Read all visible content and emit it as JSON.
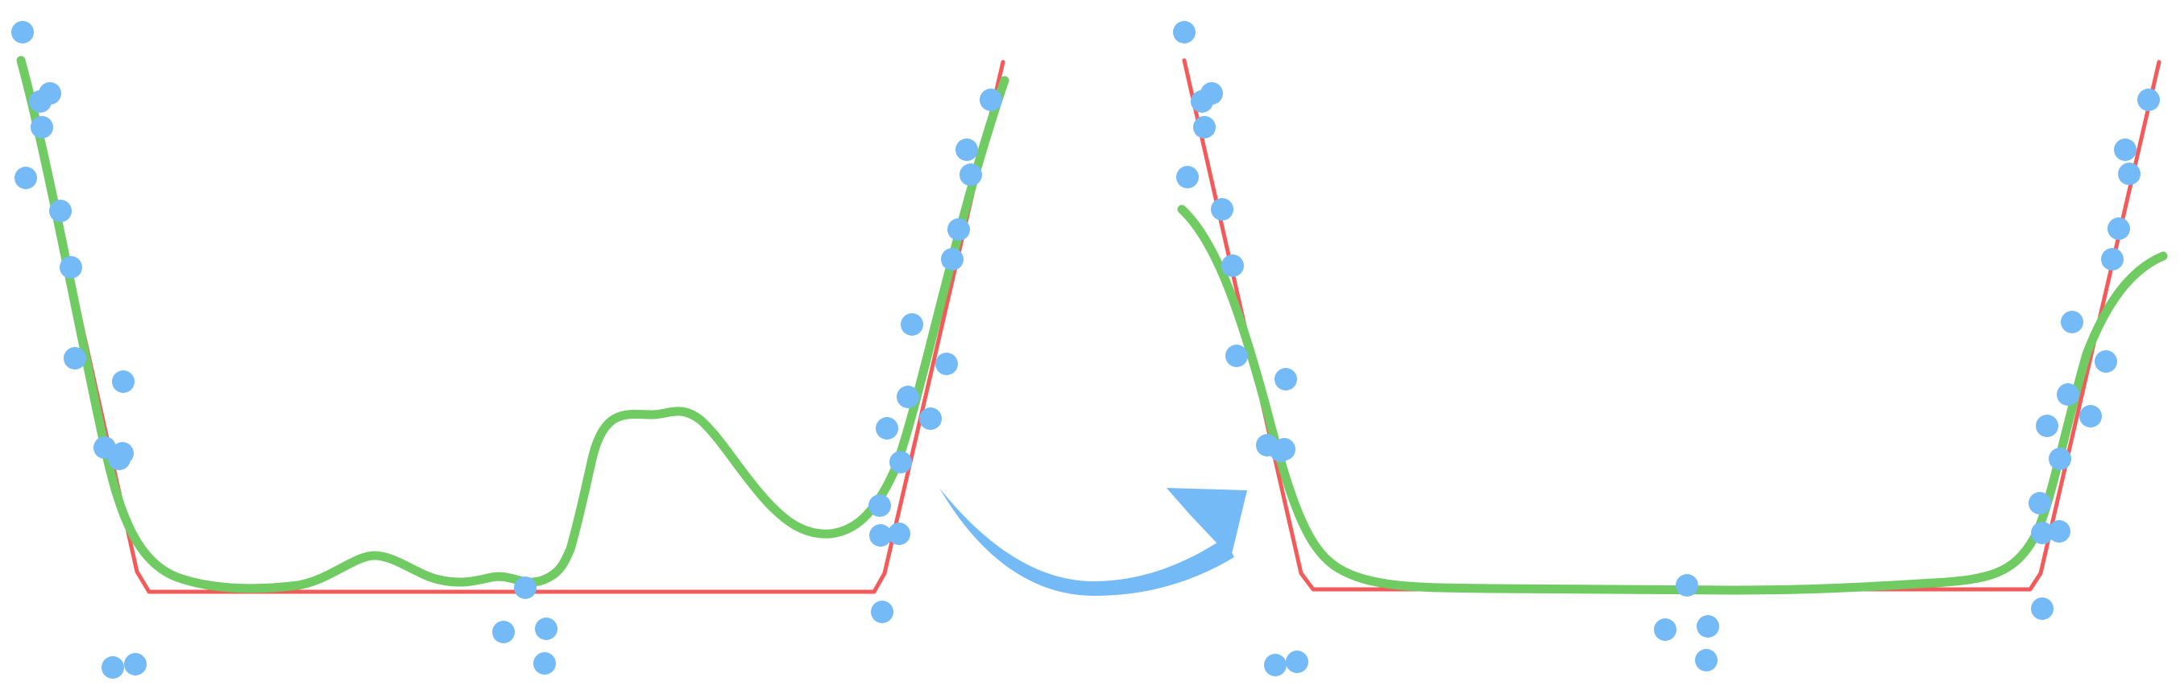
{
  "colors": {
    "ground_truth_curve": "#f35b5b",
    "fitted_curve": "#6fcb62",
    "data_points": "#74baf7",
    "arrow": "#74baf7",
    "background": "#ffffff"
  },
  "panels": [
    {
      "id": "before",
      "fit_behaviour": "overfit-wiggly",
      "point_count": 32
    },
    {
      "id": "after",
      "fit_behaviour": "smooth",
      "point_count": 32
    }
  ],
  "arrow": {
    "icon": "curved-arrow-right-icon",
    "direction": "left-to-right"
  }
}
